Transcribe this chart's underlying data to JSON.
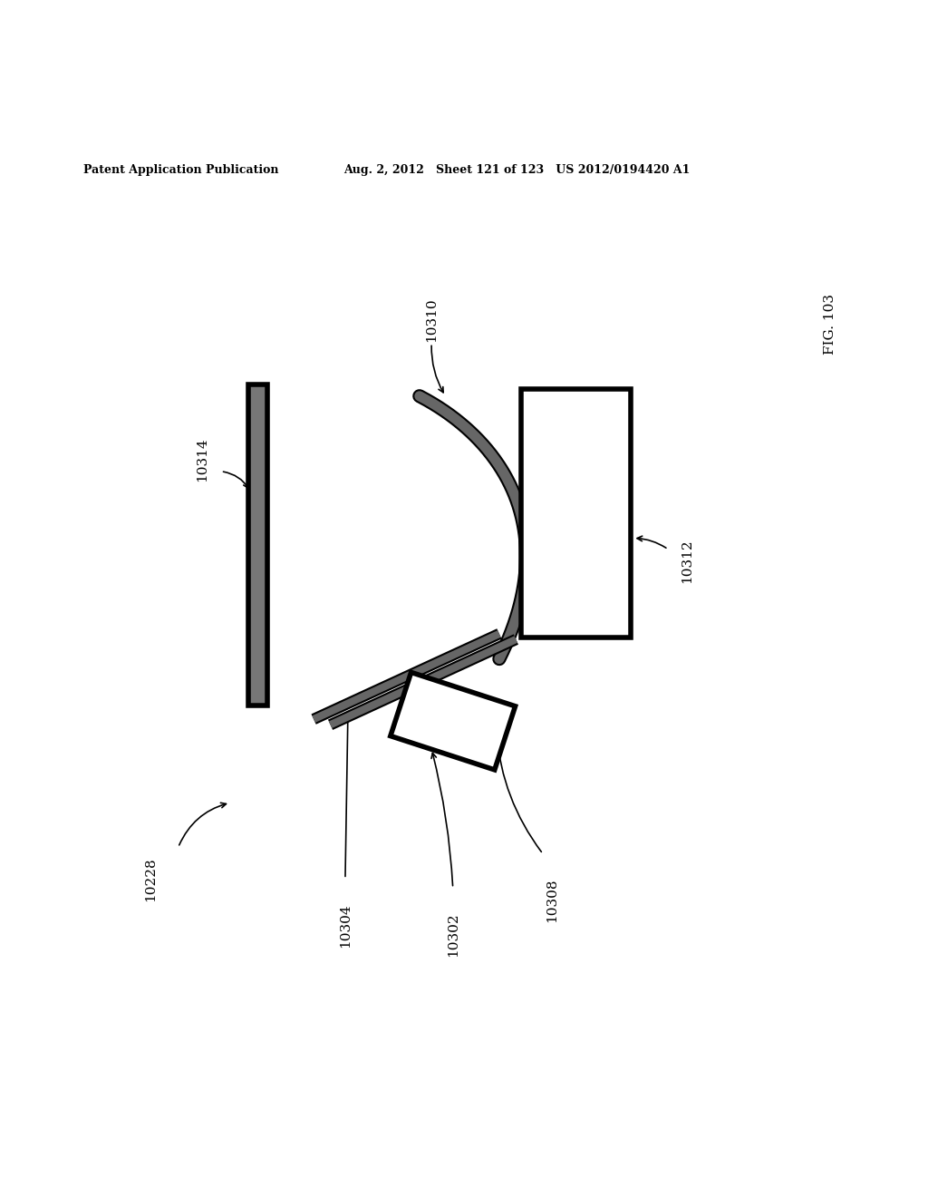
{
  "header_left": "Patent Application Publication",
  "header_mid": "Aug. 2, 2012   Sheet 121 of 123   US 2012/0194420 A1",
  "fig_label": "FIG. 103",
  "background_color": "#ffffff",
  "line_color": "#000000"
}
